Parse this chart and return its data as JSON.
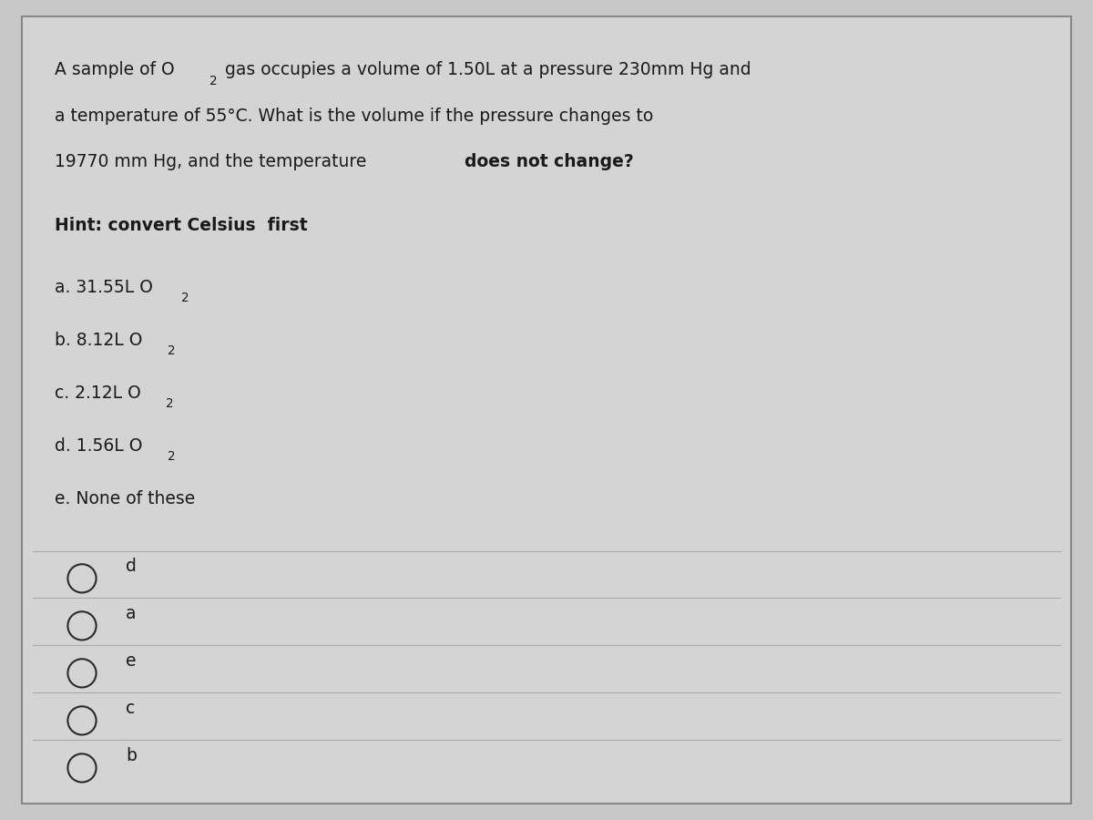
{
  "background_color": "#c8c8c8",
  "panel_color": "#d4d4d4",
  "text_color": "#1a1a1a",
  "border_color": "#888888",
  "hint": "Hint: convert Celsius  first",
  "choices": [
    {
      "label": "a.",
      "text": "31.55L O",
      "sub": "2"
    },
    {
      "label": "b.",
      "text": "8.12L O",
      "sub": "2"
    },
    {
      "label": "c.",
      "text": "2.12L O",
      "sub": "2"
    },
    {
      "label": "d.",
      "text": "1.56L O",
      "sub": "2"
    },
    {
      "label": "e.",
      "text": "None of these",
      "sub": null
    }
  ],
  "radio_options": [
    "d",
    "a",
    "e",
    "c",
    "b"
  ],
  "divider_color": "#aaaaaa",
  "font_size": 13.5
}
